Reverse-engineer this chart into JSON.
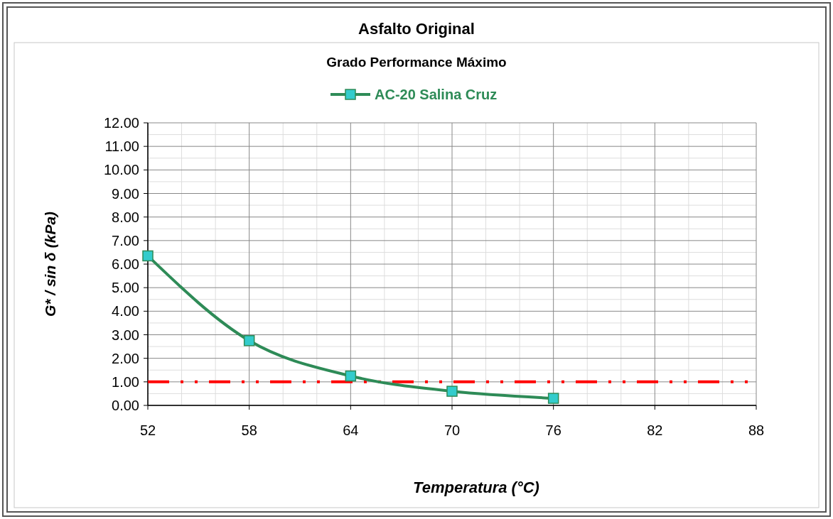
{
  "chart_data": {
    "type": "line",
    "title": "Asfalto Original",
    "subtitle": "Grado Performance Máximo",
    "xlabel": "Temperatura (°C)",
    "ylabel": "G* / sin δ (kPa)",
    "x": [
      52,
      58,
      64,
      70,
      76
    ],
    "series": [
      {
        "name": "AC-20 Salina Cruz",
        "color": "#2e8b57",
        "values": [
          6.35,
          2.75,
          1.25,
          0.6,
          0.3
        ]
      }
    ],
    "xlim": [
      52,
      88
    ],
    "xticks": [
      52,
      58,
      64,
      70,
      76,
      82,
      88
    ],
    "ylim": [
      0,
      12
    ],
    "yticks": [
      {
        "value": 0,
        "label": "0.00"
      },
      {
        "value": 1,
        "label": "1.00"
      },
      {
        "value": 2,
        "label": "2.00"
      },
      {
        "value": 3,
        "label": "3.00"
      },
      {
        "value": 4,
        "label": "4.00"
      },
      {
        "value": 5,
        "label": "5.00"
      },
      {
        "value": 6,
        "label": "6.00"
      },
      {
        "value": 7,
        "label": "7.00"
      },
      {
        "value": 8,
        "label": "8.00"
      },
      {
        "value": 9,
        "label": "9.00"
      },
      {
        "value": 10,
        "label": "10.00"
      },
      {
        "value": 11,
        "label": "11.00"
      },
      {
        "value": 12,
        "label": "12.00"
      }
    ],
    "ref_lines": [
      {
        "axis": "y",
        "value": 1,
        "color": "#ff0000",
        "line_style": "dashed"
      }
    ],
    "grid": true,
    "legend": "top",
    "marker": "square",
    "line_style": "solid"
  }
}
